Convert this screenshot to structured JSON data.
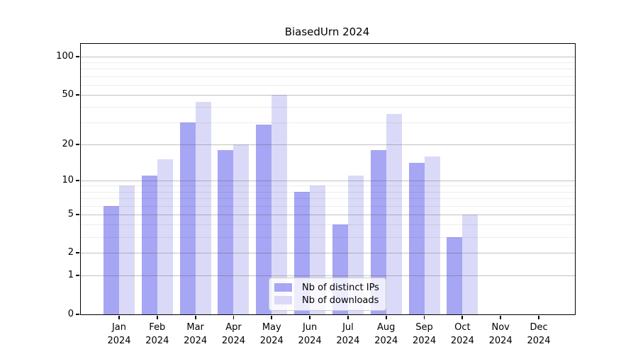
{
  "title": "BiasedUrn 2024",
  "chart_data": {
    "type": "bar",
    "title": "BiasedUrn 2024",
    "categories": [
      "Jan",
      "Feb",
      "Mar",
      "Apr",
      "May",
      "Jun",
      "Jul",
      "Aug",
      "Sep",
      "Oct",
      "Nov",
      "Dec"
    ],
    "year_label": "2024",
    "series": [
      {
        "name": "Nb of distinct IPs",
        "color": "#a6a6f4",
        "values": [
          6,
          11,
          30,
          18,
          29,
          8,
          4,
          18,
          14,
          3,
          0,
          0
        ]
      },
      {
        "name": "Nb of downloads",
        "color": "#dadaf8",
        "values": [
          9,
          15,
          44,
          20,
          50,
          9,
          11,
          35,
          16,
          5,
          0,
          0
        ]
      }
    ],
    "yscale": "log1p",
    "ytick_values": [
      0,
      1,
      2,
      5,
      10,
      20,
      50,
      100
    ],
    "minor_gridline_values": [
      3,
      4,
      6,
      7,
      8,
      9,
      30,
      40,
      60,
      70,
      80,
      90
    ],
    "ylim": [
      0,
      126
    ],
    "grid": "on",
    "legend_position": "lower center",
    "xlabel": "",
    "ylabel": ""
  },
  "colors": {
    "axis": "#000000",
    "major_grid": "#808080",
    "minor_grid": "#ebebeb",
    "legend_border": "#cccccc",
    "background": "#ffffff"
  }
}
